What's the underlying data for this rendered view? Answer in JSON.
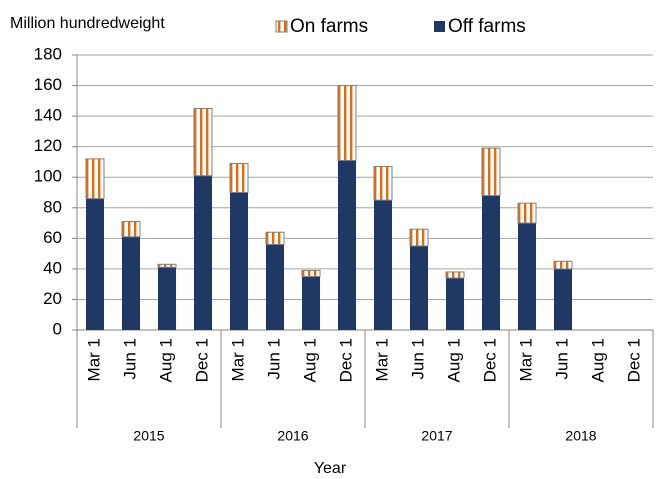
{
  "chart_data": {
    "type": "stacked_bar",
    "y_label": "Million hundredweight",
    "x_label": "Year",
    "categories": [
      "Mar 1",
      "Jun 1",
      "Aug 1",
      "Dec 1",
      "Mar 1",
      "Jun 1",
      "Aug 1",
      "Dec 1",
      "Mar 1",
      "Jun 1",
      "Aug 1",
      "Dec 1",
      "Mar 1",
      "Jun 1",
      "Aug 1",
      "Dec 1"
    ],
    "groups": [
      "2015",
      "2016",
      "2017",
      "2018"
    ],
    "series": [
      {
        "name": "Off farms",
        "color": "#1f3864",
        "values": [
          86,
          61,
          41,
          101,
          90,
          56,
          35,
          111,
          85,
          55,
          34,
          88,
          70,
          40,
          null,
          null
        ]
      },
      {
        "name": "On farms",
        "color": "#e36c0a",
        "pattern": "vertical-stripes",
        "values": [
          26,
          10,
          2,
          44,
          19,
          8,
          4,
          49,
          22,
          11,
          4,
          31,
          13,
          5,
          null,
          null
        ]
      }
    ],
    "legend_order": [
      1,
      0
    ],
    "ylim": [
      0,
      180
    ],
    "yticks": [
      0,
      20,
      40,
      60,
      80,
      100,
      120,
      140,
      160,
      180
    ],
    "grid": true
  }
}
